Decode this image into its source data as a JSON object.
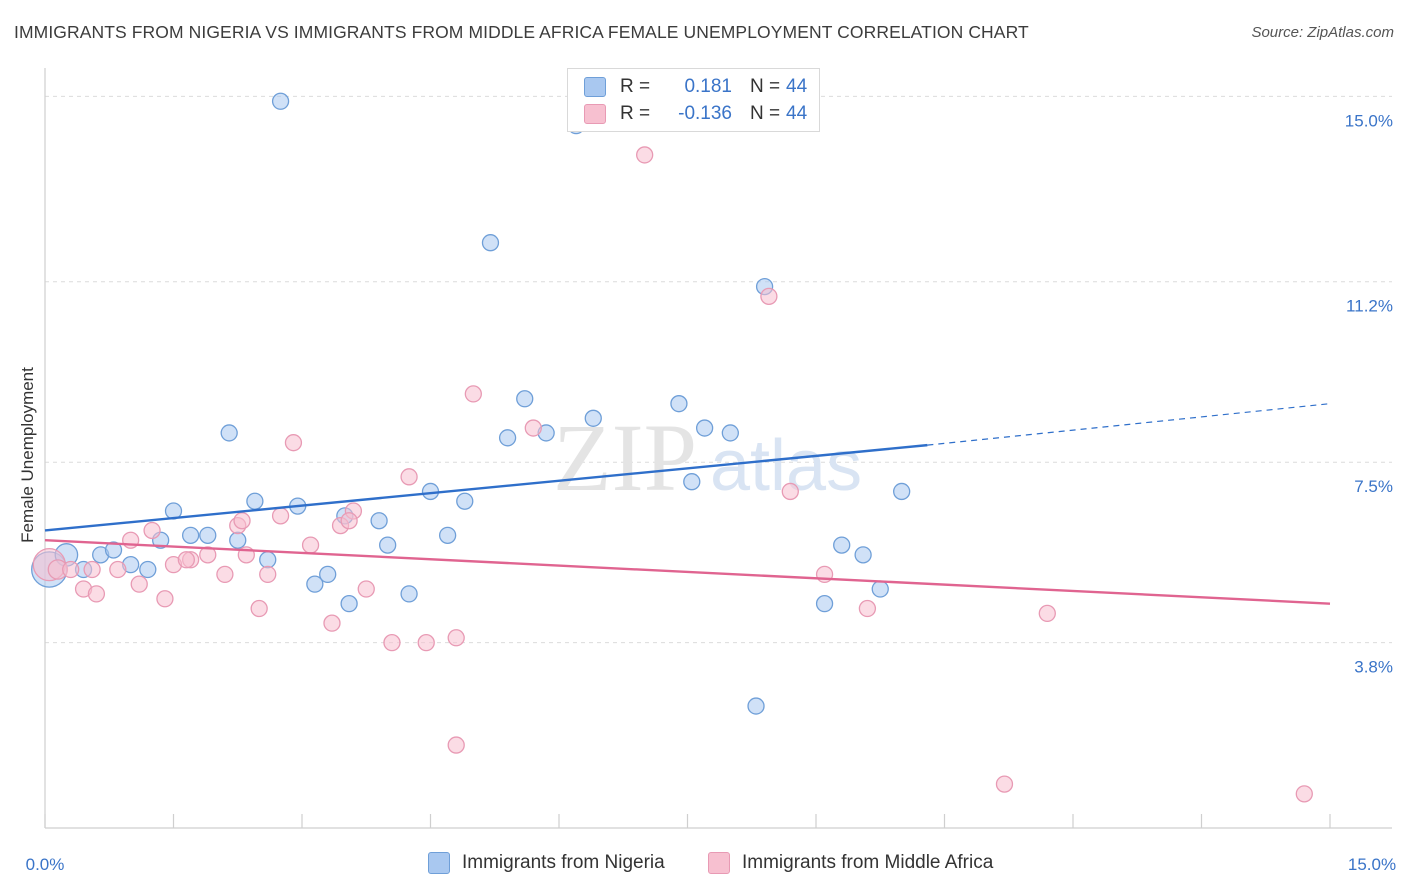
{
  "title": "IMMIGRANTS FROM NIGERIA VS IMMIGRANTS FROM MIDDLE AFRICA FEMALE UNEMPLOYMENT CORRELATION CHART",
  "source": "Source: ZipAtlas.com",
  "watermark": {
    "zip": "ZIP",
    "atlas": "atlas"
  },
  "legend": {
    "rows": [
      {
        "r_label": "R =",
        "r_value": "0.181",
        "n_label": "N =",
        "n_value": "44"
      },
      {
        "r_label": "R =",
        "r_value": "-0.136",
        "n_label": "N =",
        "n_value": "44"
      }
    ]
  },
  "bottom_legend": [
    "Immigrants from Nigeria",
    "Immigrants from Middle Africa"
  ],
  "colors": {
    "nigeria_fill": "#a9c8f0",
    "nigeria_stroke": "#6f9fd8",
    "nigeria_line": "#2f6fca",
    "africa_fill": "#f7c0d0",
    "africa_stroke": "#e89ab4",
    "africa_line": "#e06490",
    "tick_label": "#3a74c8",
    "grid": "#dcdcdc"
  },
  "chart_data": {
    "type": "scatter",
    "xlabel": "",
    "ylabel": "Female Unemployment",
    "xlim": [
      0,
      15
    ],
    "ylim": [
      0,
      15.5
    ],
    "x_tick_labels": [
      "0.0%",
      "15.0%"
    ],
    "y_ticks": [
      3.8,
      7.5,
      11.2,
      15.0
    ],
    "y_tick_labels": [
      "3.8%",
      "7.5%",
      "11.2%",
      "15.0%"
    ],
    "grid": true,
    "series": [
      {
        "name": "Immigrants from Nigeria",
        "r": 0.181,
        "n": 44,
        "trend": {
          "x0": 0,
          "y0": 6.1,
          "x1": 10.3,
          "y1": 7.85,
          "dash_to_x": 15,
          "dash_to_y": 8.7
        },
        "points": [
          [
            0.05,
            5.3,
            2.2
          ],
          [
            0.25,
            5.6,
            1.4
          ],
          [
            0.45,
            5.3,
            1
          ],
          [
            0.65,
            5.6,
            1
          ],
          [
            0.8,
            5.7,
            1
          ],
          [
            1.0,
            5.4,
            1
          ],
          [
            1.2,
            5.3,
            1
          ],
          [
            1.35,
            5.9,
            1
          ],
          [
            1.5,
            6.5,
            1
          ],
          [
            1.7,
            6.0,
            1
          ],
          [
            1.9,
            6.0,
            1
          ],
          [
            2.15,
            8.1,
            1
          ],
          [
            2.25,
            5.9,
            1
          ],
          [
            2.45,
            6.7,
            1
          ],
          [
            2.6,
            5.5,
            1
          ],
          [
            2.75,
            14.9,
            1
          ],
          [
            2.95,
            6.6,
            1
          ],
          [
            3.15,
            5.0,
            1
          ],
          [
            3.3,
            5.2,
            1
          ],
          [
            3.5,
            6.4,
            1
          ],
          [
            3.55,
            4.6,
            1
          ],
          [
            3.9,
            6.3,
            1
          ],
          [
            4.0,
            5.8,
            1
          ],
          [
            4.25,
            4.8,
            1
          ],
          [
            4.5,
            6.9,
            1
          ],
          [
            4.7,
            6.0,
            1
          ],
          [
            4.9,
            6.7,
            1
          ],
          [
            5.2,
            12.0,
            1
          ],
          [
            5.4,
            8.0,
            1
          ],
          [
            5.6,
            8.8,
            1
          ],
          [
            5.85,
            8.1,
            1
          ],
          [
            6.2,
            14.4,
            1
          ],
          [
            6.4,
            8.4,
            1
          ],
          [
            7.4,
            8.7,
            1
          ],
          [
            7.55,
            7.1,
            1
          ],
          [
            7.7,
            8.2,
            1
          ],
          [
            8.0,
            8.1,
            1
          ],
          [
            8.3,
            2.5,
            1
          ],
          [
            8.4,
            11.1,
            1
          ],
          [
            9.1,
            4.6,
            1
          ],
          [
            9.3,
            5.8,
            1
          ],
          [
            9.55,
            5.6,
            1
          ],
          [
            9.75,
            4.9,
            1
          ],
          [
            10.0,
            6.9,
            1
          ]
        ]
      },
      {
        "name": "Immigrants from Middle Africa",
        "r": -0.136,
        "n": 44,
        "trend": {
          "x0": 0,
          "y0": 5.9,
          "x1": 15,
          "y1": 4.6
        },
        "points": [
          [
            0.05,
            5.4,
            2.0
          ],
          [
            0.15,
            5.3,
            1.2
          ],
          [
            0.3,
            5.3,
            1
          ],
          [
            0.45,
            4.9,
            1
          ],
          [
            0.6,
            4.8,
            1
          ],
          [
            0.85,
            5.3,
            1
          ],
          [
            1.0,
            5.9,
            1
          ],
          [
            1.1,
            5.0,
            1
          ],
          [
            1.25,
            6.1,
            1
          ],
          [
            1.4,
            4.7,
            1
          ],
          [
            1.5,
            5.4,
            1
          ],
          [
            1.7,
            5.5,
            1
          ],
          [
            1.9,
            5.6,
            1
          ],
          [
            2.1,
            5.2,
            1
          ],
          [
            2.25,
            6.2,
            1
          ],
          [
            2.35,
            5.6,
            1
          ],
          [
            2.5,
            4.5,
            1
          ],
          [
            2.6,
            5.2,
            1
          ],
          [
            2.75,
            6.4,
            1
          ],
          [
            2.9,
            7.9,
            1
          ],
          [
            3.1,
            5.8,
            1
          ],
          [
            3.35,
            4.2,
            1
          ],
          [
            3.45,
            6.2,
            1
          ],
          [
            3.6,
            6.5,
            1
          ],
          [
            3.75,
            4.9,
            1
          ],
          [
            4.05,
            3.8,
            1
          ],
          [
            4.25,
            7.2,
            1
          ],
          [
            4.45,
            3.8,
            1
          ],
          [
            4.8,
            3.9,
            1
          ],
          [
            4.8,
            1.7,
            1
          ],
          [
            5.0,
            8.9,
            1
          ],
          [
            5.7,
            8.2,
            1
          ],
          [
            7.0,
            13.8,
            1
          ],
          [
            8.45,
            10.9,
            1
          ],
          [
            8.7,
            6.9,
            1
          ],
          [
            9.1,
            5.2,
            1
          ],
          [
            9.6,
            4.5,
            1
          ],
          [
            11.2,
            0.9,
            1
          ],
          [
            11.7,
            4.4,
            1
          ],
          [
            14.7,
            0.7,
            1
          ],
          [
            0.55,
            5.3,
            1
          ],
          [
            1.65,
            5.5,
            1
          ],
          [
            2.3,
            6.3,
            1
          ],
          [
            3.55,
            6.3,
            1
          ]
        ]
      }
    ]
  }
}
